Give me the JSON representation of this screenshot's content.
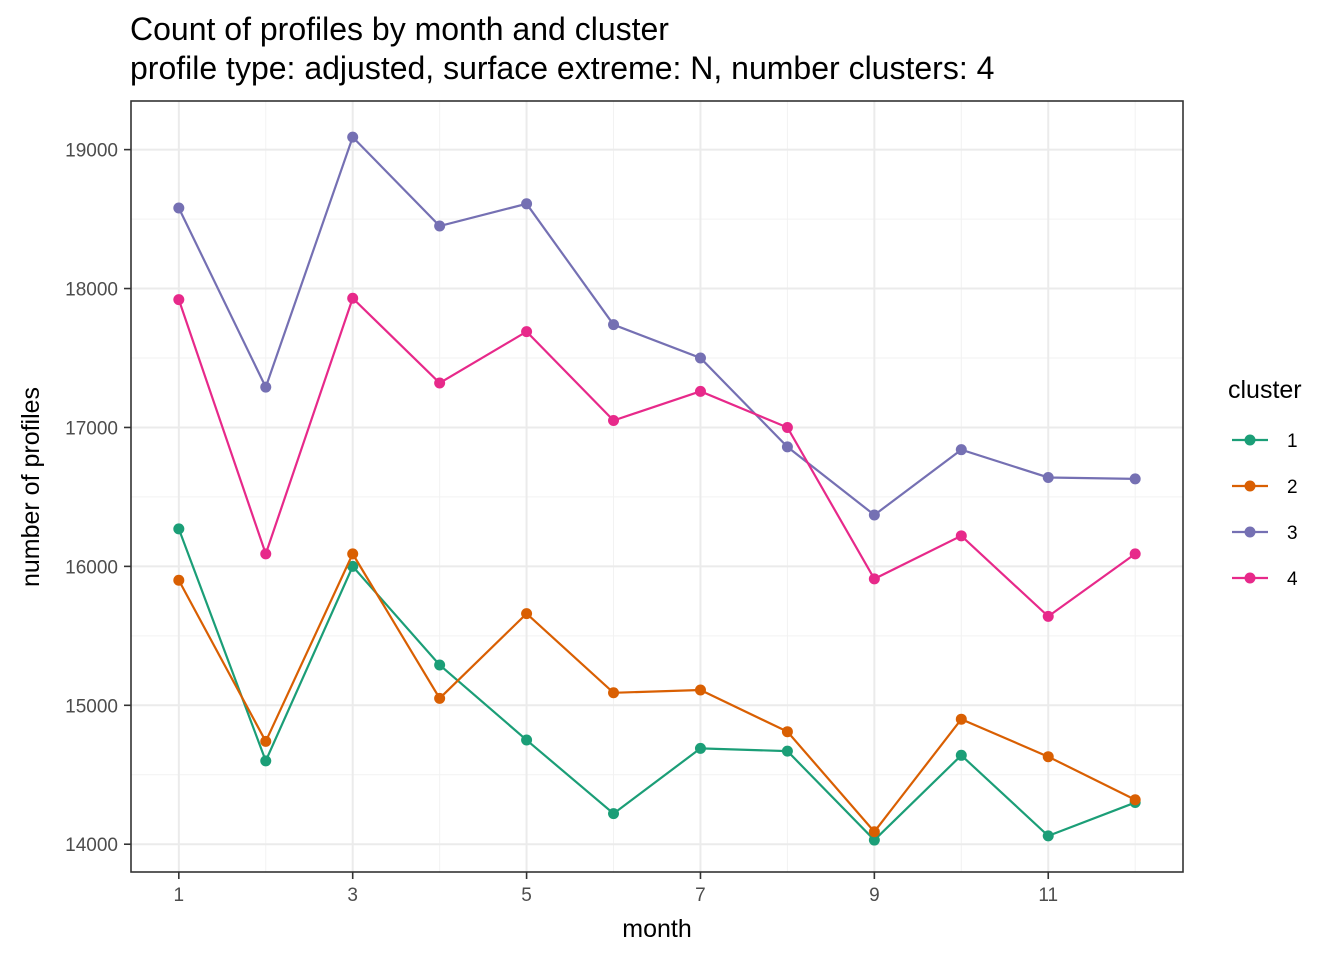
{
  "chart_data": {
    "type": "line",
    "title": "Count of profiles by month and cluster",
    "subtitle": "profile type: adjusted, surface extreme: N, number clusters: 4",
    "xlabel": "month",
    "ylabel": "number of profiles",
    "x": [
      1,
      2,
      3,
      4,
      5,
      6,
      7,
      8,
      9,
      10,
      11,
      12
    ],
    "xlim": [
      0.45,
      12.55
    ],
    "ylim": [
      13800,
      19350
    ],
    "x_ticks": [
      1,
      3,
      5,
      7,
      9,
      11
    ],
    "x_tick_labels": [
      "1",
      "3",
      "5",
      "7",
      "9",
      "11"
    ],
    "y_ticks": [
      14000,
      15000,
      16000,
      17000,
      18000,
      19000
    ],
    "y_tick_labels": [
      "14000",
      "15000",
      "16000",
      "17000",
      "18000",
      "19000"
    ],
    "grid": true,
    "legend": {
      "title": "cluster",
      "position": "right"
    },
    "series": [
      {
        "name": "1",
        "color": "#1b9e77",
        "values": [
          16270,
          14600,
          16000,
          15290,
          14750,
          14220,
          14690,
          14670,
          14030,
          14640,
          14060,
          14300
        ]
      },
      {
        "name": "2",
        "color": "#d95f02",
        "values": [
          15900,
          14740,
          16090,
          15050,
          15660,
          15090,
          15110,
          14810,
          14090,
          14900,
          14630,
          14320
        ]
      },
      {
        "name": "3",
        "color": "#7570b3",
        "values": [
          18580,
          17290,
          19090,
          18450,
          18610,
          17740,
          17500,
          16860,
          16370,
          16840,
          16640,
          16630
        ]
      },
      {
        "name": "4",
        "color": "#e7298a",
        "values": [
          17920,
          16090,
          17930,
          17320,
          17690,
          17050,
          17260,
          17000,
          15910,
          16220,
          15640,
          16090
        ]
      }
    ]
  }
}
